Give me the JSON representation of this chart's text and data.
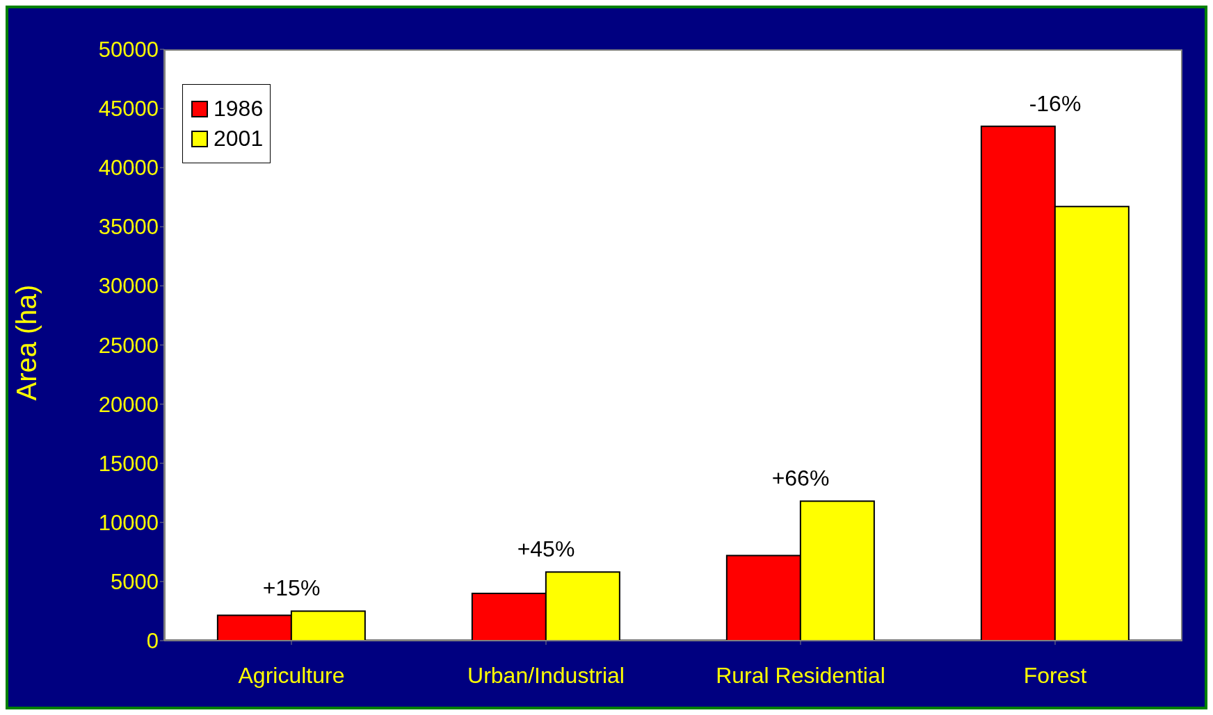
{
  "chart_data": {
    "type": "bar",
    "ylabel": "Area (ha)",
    "categories": [
      "Agriculture",
      "Urban/Industrial",
      "Rural Residential",
      "Forest"
    ],
    "series": [
      {
        "name": "1986",
        "color": "#ff0000",
        "values": [
          2150,
          4000,
          7200,
          43500
        ]
      },
      {
        "name": "2001",
        "color": "#ffff00",
        "values": [
          2500,
          5800,
          11800,
          36700
        ]
      }
    ],
    "ylim": [
      0,
      50000
    ],
    "yticks": [
      0,
      5000,
      10000,
      15000,
      20000,
      25000,
      30000,
      35000,
      40000,
      45000,
      50000
    ],
    "legend": "top left",
    "grid": false,
    "annotations": [
      "+15%",
      "+45%",
      "+66%",
      "-16%"
    ]
  }
}
